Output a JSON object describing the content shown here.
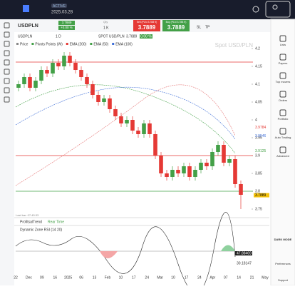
{
  "topbar": {
    "badge": "ACTIVE",
    "date": "2025.03.28"
  },
  "toolbar": {
    "symbol": "USDPLN",
    "price": "3.7889",
    "change": "+0.00 %",
    "qty_label": "Qty",
    "qty": "1 K",
    "sell_label": "Sell (PLN 3.788 9)",
    "sell": "3.7889",
    "buy_label": "Buy (PLN 3.788 9)",
    "buy": "3.7889",
    "sl": "SL",
    "tp": "TP"
  },
  "chart_header": {
    "symbol": "USDPLN",
    "interval": "1 D",
    "spot": "SPOT USD/PLN",
    "spot_price": "3.7889",
    "spot_change": "0.00 %"
  },
  "legend": [
    "Price",
    "Pivots Points (W)",
    "EMA (200)",
    "EMA (50)",
    "EMA (100)"
  ],
  "watermark": "Spot USD/PLN",
  "last_bar": "Last bar: 07:45:33",
  "indicator1": {
    "name": "ProfitsalTrend",
    "sub": "Rear Time"
  },
  "indicator2": {
    "name": "Dynamic Zone RSI (14 20)",
    "labels": [
      "47.88469",
      "30.18147"
    ]
  },
  "sidebar": [
    "Lists",
    "Papers",
    "Top movers",
    "Orders",
    "Portfolio",
    "Auto Trading",
    "Advanced"
  ],
  "sidebar_bottom": {
    "dark": "DARK MODE",
    "prefs": "Preferences",
    "support": "Support"
  },
  "chart_data": {
    "type": "candlestick",
    "x_labels": [
      "22",
      "Dec",
      "09",
      "16",
      "2025",
      "06",
      "13",
      "Feb",
      "10",
      "17",
      "24",
      "Mar",
      "10",
      "17",
      "24",
      "Apr",
      "07",
      "14",
      "21",
      "May"
    ],
    "open": [
      4.09,
      4.1,
      4.12,
      4.09,
      4.11,
      4.14,
      4.13,
      4.16,
      4.15,
      4.18,
      4.16,
      4.14,
      4.12,
      4.1,
      4.07,
      4.05,
      4.06,
      4.03,
      4.01,
      3.99,
      4.0,
      3.97,
      3.96,
      3.99,
      3.96,
      3.9,
      3.85,
      3.84,
      3.86,
      3.85,
      3.87,
      3.84,
      3.86,
      3.88,
      3.87,
      3.91,
      3.93,
      3.88,
      3.89,
      3.82
    ],
    "high": [
      4.11,
      4.13,
      4.13,
      4.12,
      4.15,
      4.15,
      4.17,
      4.17,
      4.19,
      4.19,
      4.17,
      4.15,
      4.13,
      4.11,
      4.08,
      4.07,
      4.07,
      4.04,
      4.02,
      4.01,
      4.01,
      3.98,
      4.0,
      4.0,
      3.97,
      3.91,
      3.86,
      3.87,
      3.87,
      3.88,
      3.88,
      3.87,
      3.89,
      3.89,
      3.92,
      3.94,
      3.94,
      3.9,
      3.9,
      3.83
    ],
    "low": [
      4.08,
      4.09,
      4.08,
      4.08,
      4.1,
      4.12,
      4.12,
      4.14,
      4.14,
      4.15,
      4.13,
      4.11,
      4.09,
      4.06,
      4.04,
      4.04,
      4.02,
      4.0,
      3.98,
      3.98,
      3.96,
      3.95,
      3.95,
      3.95,
      3.89,
      3.84,
      3.83,
      3.83,
      3.84,
      3.84,
      3.83,
      3.83,
      3.85,
      3.86,
      3.86,
      3.9,
      3.87,
      3.87,
      3.81,
      3.75
    ],
    "close": [
      4.1,
      4.12,
      4.09,
      4.11,
      4.14,
      4.13,
      4.16,
      4.15,
      4.18,
      4.16,
      4.14,
      4.12,
      4.1,
      4.07,
      4.05,
      4.06,
      4.03,
      4.01,
      3.99,
      4.0,
      3.97,
      3.96,
      3.99,
      3.96,
      3.9,
      3.85,
      3.84,
      3.86,
      3.85,
      3.87,
      3.84,
      3.86,
      3.88,
      3.87,
      3.91,
      3.93,
      3.88,
      3.89,
      3.82,
      3.79
    ],
    "up_color": "#43a047",
    "down_color": "#e53935",
    "ylim": [
      3.736,
      4.204
    ],
    "yticks": [
      3.75,
      3.8,
      3.85,
      3.9,
      3.95,
      4,
      4.05,
      4.1,
      4.15,
      4.2
    ],
    "levels": [
      {
        "value": 4.162,
        "color": "#e53935"
      },
      {
        "value": 3.9,
        "color": "#e53935"
      },
      {
        "value": 3.8,
        "color": "#43a047"
      }
    ],
    "axis_badges": [
      {
        "value": 3.9784,
        "color": "#e53935"
      },
      {
        "value": 3.9546,
        "color": "#3f6fd8"
      },
      {
        "value": 3.9125,
        "color": "#43a047"
      },
      {
        "value": 3.7889,
        "color": "#f4c20d"
      }
    ]
  }
}
